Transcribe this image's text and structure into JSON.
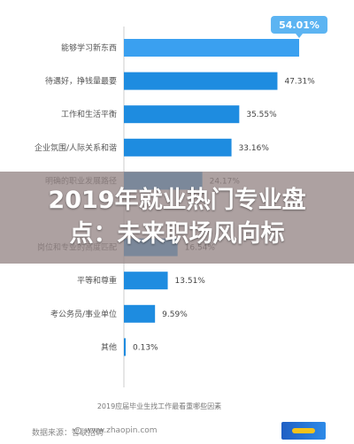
{
  "chart_data": {
    "type": "bar",
    "orientation": "horizontal",
    "title": "",
    "xlabel": "2019应届毕业生找工作最看重哪些因素",
    "ylabel": "",
    "xlim": [
      0,
      60
    ],
    "grid": false,
    "legend": "none",
    "bar_color": "#1e8ce0",
    "highlight_color": "#3aa0f0",
    "categories": [
      "能够学习新东西",
      "待遇好，挣钱量最要",
      "工作和生活平衡",
      "企业氛围/人际关系和谐",
      "明确的职业发展路径",
      "",
      "岗位和专业的高度匹配",
      "平等和尊重",
      "考公务员/事业单位",
      "其他"
    ],
    "values": [
      54.01,
      47.31,
      35.55,
      33.16,
      24.17,
      null,
      16.54,
      13.51,
      9.59,
      0.13
    ],
    "value_labels": [
      "54.01%",
      "47.31%",
      "35.55%",
      "33.16%",
      "24.17%",
      "",
      "16.54%",
      "13.51%",
      "9.59%",
      "0.13%"
    ]
  },
  "overlay": {
    "line1": "2019年就业热门专业盘",
    "line2": "点：未来职场风向标"
  },
  "footer": {
    "source": "数据来源：智联招聘",
    "url": "www.zhaopin.com"
  }
}
